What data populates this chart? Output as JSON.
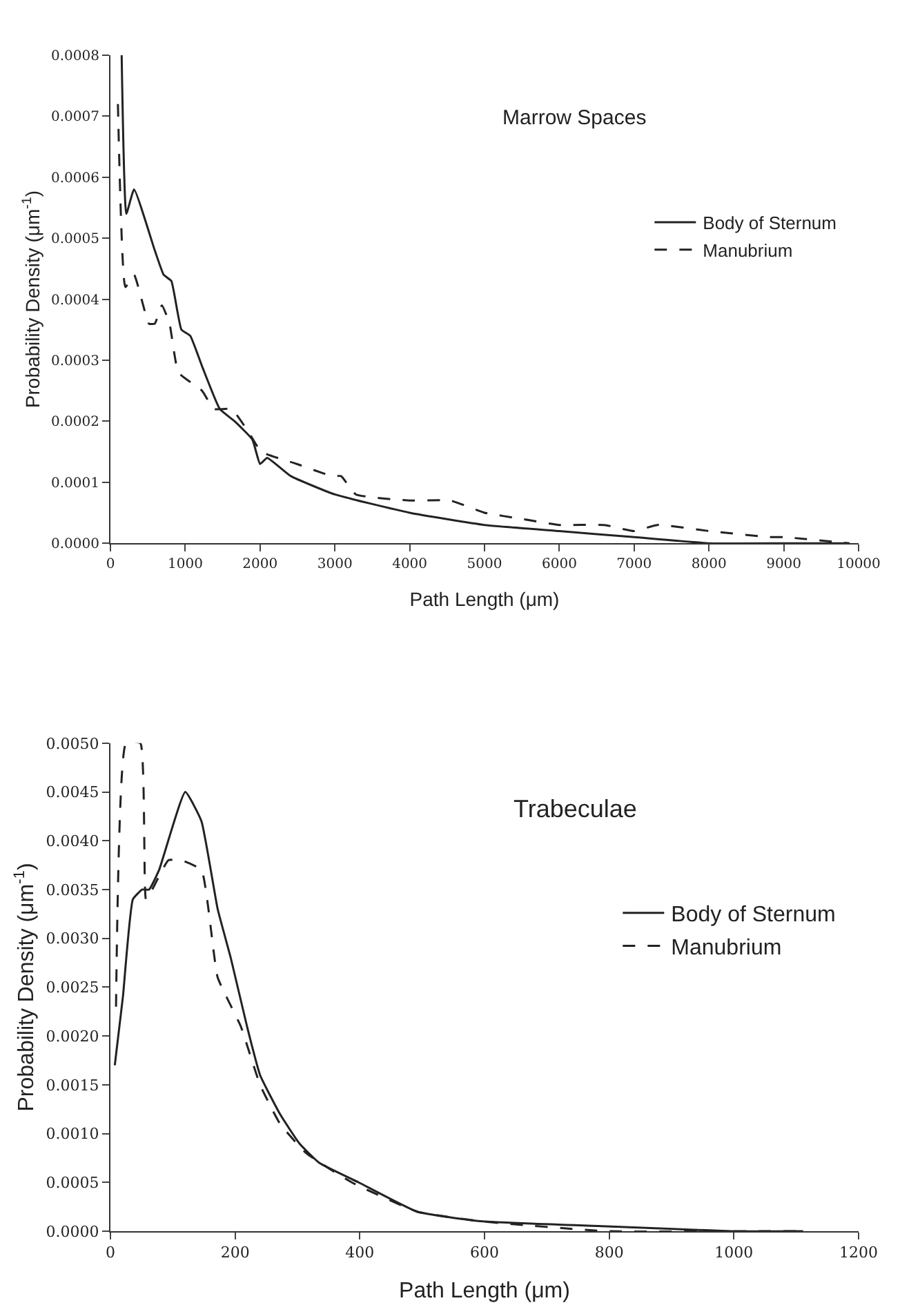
{
  "chart_data": [
    {
      "type": "line",
      "title": "Marrow Spaces",
      "xlabel": "Path Length (μm)",
      "ylabel": "Probability Density (μm$^{-1}$)",
      "xlim": [
        0,
        10000
      ],
      "xticks": [
        0,
        1000,
        2000,
        3000,
        4000,
        5000,
        6000,
        7000,
        8000,
        9000,
        10000
      ],
      "ylim": [
        0,
        0.0008
      ],
      "yticks": [
        {
          "value": 0,
          "label": "0.0000"
        },
        0.0001,
        0.0002,
        0.0003,
        0.0004,
        0.0005,
        0.0006,
        0.0007,
        0.0008
      ],
      "legend": "top right",
      "marker": "none",
      "series": [
        {
          "name": "Body of Sternum",
          "color": "#222222",
          "line_style": "solid",
          "x": [
            150,
            213,
            316,
            593,
            712,
            814,
            949,
            1067,
            1225,
            1462,
            1660,
            1897,
            2000,
            2095,
            2411,
            3000,
            4000,
            5000,
            6000,
            7000,
            8000,
            9000,
            9850
          ],
          "values": [
            0.0008,
            0.00054,
            0.00058,
            0.00048,
            0.00044,
            0.00043,
            0.00035,
            0.00034,
            0.00029,
            0.00022,
            0.0002,
            0.00017,
            0.00013,
            0.00014,
            0.00011,
            8e-05,
            5e-05,
            3e-05,
            2e-05,
            1e-05,
            0.0,
            0.0,
            0.0
          ]
        },
        {
          "name": "Manubrium",
          "color": "#222222",
          "line_style": "dashed",
          "x": [
            100,
            200,
            316,
            514,
            593,
            688,
            790,
            909,
            1225,
            1383,
            1620,
            1858,
            2016,
            2490,
            2964,
            3083,
            3281,
            4000,
            4545,
            5000,
            5494,
            6000,
            6600,
            7000,
            7312,
            8000,
            8814,
            9000,
            9880
          ],
          "values": [
            0.00072,
            0.00042,
            0.00044,
            0.00036,
            0.00036,
            0.00039,
            0.00036,
            0.00028,
            0.00025,
            0.00022,
            0.00022,
            0.00018,
            0.00015,
            0.00013,
            0.00011,
            0.00011,
            8e-05,
            7e-05,
            7e-05,
            5e-05,
            4e-05,
            3e-05,
            3e-05,
            2e-05,
            3e-05,
            2e-05,
            1e-05,
            1e-05,
            0.0
          ]
        }
      ]
    },
    {
      "type": "line",
      "title": "Trabeculae",
      "xlabel": "Path Length (μm)",
      "ylabel": "Probability Density (μm$^{-1}$)",
      "xlim": [
        0,
        1200
      ],
      "xticks": [
        0,
        200,
        400,
        600,
        800,
        1000,
        1200
      ],
      "ylim": [
        0,
        0.005
      ],
      "yticks": [
        {
          "value": 0,
          "label": "0.0000"
        },
        {
          "value": 0.0005,
          "label": "0.0005"
        },
        {
          "value": 0.001,
          "label": "0.0010"
        },
        {
          "value": 0.0015,
          "label": "0.0015"
        },
        {
          "value": 0.002,
          "label": "0.0020"
        },
        {
          "value": 0.0025,
          "label": "0.0025"
        },
        {
          "value": 0.003,
          "label": "0.0030"
        },
        {
          "value": 0.0035,
          "label": "0.0035"
        },
        {
          "value": 0.004,
          "label": "0.0040"
        },
        {
          "value": 0.0045,
          "label": "0.0045"
        },
        {
          "value": 0.005,
          "label": "0.0050"
        }
      ],
      "legend": "top right",
      "marker": "none",
      "series": [
        {
          "name": "Body of Sternum",
          "color": "#222222",
          "line_style": "solid",
          "x": [
            7,
            20,
            36,
            51,
            62,
            78,
            120,
            146,
            172,
            193,
            219,
            240,
            272,
            303,
            335,
            398,
            492,
            597,
            796,
            996,
            1111
          ],
          "values": [
            0.0017,
            0.0024,
            0.0034,
            0.0035,
            0.0035,
            0.0037,
            0.0045,
            0.0042,
            0.0033,
            0.0028,
            0.0021,
            0.0016,
            0.0012,
            0.0009,
            0.0007,
            0.0005,
            0.0002,
            0.0001,
            5e-05,
            0.0,
            0.0
          ]
        },
        {
          "name": "Manubrium",
          "color": "#222222",
          "line_style": "dashed",
          "x": [
            9,
            25,
            48,
            57,
            67,
            93,
            114,
            146,
            172,
            209,
            240,
            272,
            314,
            387,
            492,
            597,
            796,
            1048,
            1111
          ],
          "values": [
            0.0023,
            0.005,
            0.005,
            0.0034,
            0.0035,
            0.0038,
            0.0038,
            0.0037,
            0.0026,
            0.0021,
            0.0015,
            0.0011,
            0.0008,
            0.0005,
            0.0002,
            0.0001,
            0.0,
            0.0,
            0.0
          ]
        }
      ]
    }
  ]
}
